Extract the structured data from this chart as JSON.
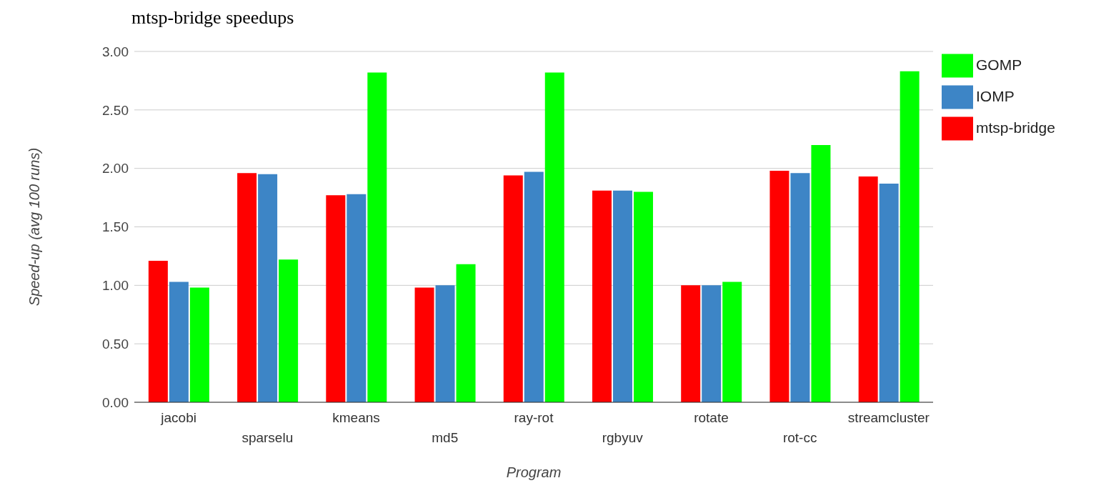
{
  "chart_data": {
    "type": "bar",
    "title": "mtsp-bridge speedups",
    "xlabel": "Program",
    "ylabel": "Speed-up (avg 100 runs)",
    "categories": [
      "jacobi",
      "sparselu",
      "kmeans",
      "md5",
      "ray-rot",
      "rgbyuv",
      "rotate",
      "rot-cc",
      "streamcluster"
    ],
    "series": [
      {
        "name": "mtsp-bridge",
        "color": "#ff0000",
        "values": [
          1.21,
          1.96,
          1.77,
          0.98,
          1.94,
          1.81,
          1.0,
          1.98,
          1.93
        ]
      },
      {
        "name": "IOMP",
        "color": "#3d85c6",
        "values": [
          1.03,
          1.95,
          1.78,
          1.0,
          1.97,
          1.81,
          1.0,
          1.96,
          1.87
        ]
      },
      {
        "name": "GOMP",
        "color": "#00ff00",
        "values": [
          0.98,
          1.22,
          2.82,
          1.18,
          2.82,
          1.8,
          1.03,
          2.2,
          2.83
        ]
      }
    ],
    "ylim": [
      0,
      3
    ],
    "yticks": [
      {
        "value": 0,
        "label": "0.00"
      },
      {
        "value": 0.5,
        "label": "0.50"
      },
      {
        "value": 1,
        "label": "1.00"
      },
      {
        "value": 1.5,
        "label": "1.50"
      },
      {
        "value": 2,
        "label": "2.00"
      },
      {
        "value": 2.5,
        "label": "2.50"
      },
      {
        "value": 3,
        "label": "3.00"
      }
    ],
    "grid": "y",
    "legend": "top right"
  }
}
